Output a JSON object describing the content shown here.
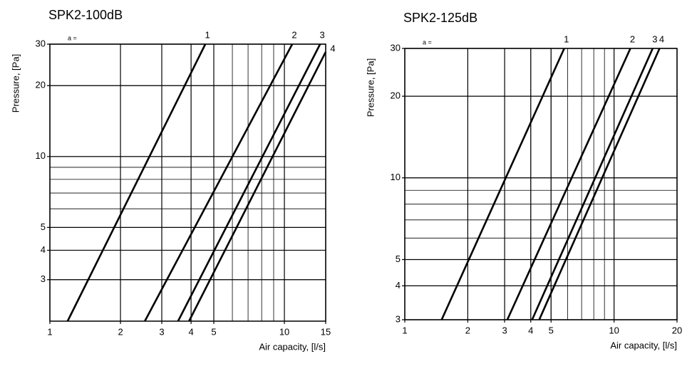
{
  "chart_data": [
    {
      "type": "line",
      "title": "SPK2-100dB",
      "x_label": "Air capacity, [l/s]",
      "y_label": "Pressure, [Pa]",
      "annotation": "a =",
      "log_x": true,
      "log_y": true,
      "grid": true,
      "minor_grid": true,
      "color": "#000000",
      "xlim": [
        1,
        15
      ],
      "xticks": [
        1,
        2,
        3,
        4,
        5,
        10,
        15
      ],
      "ylim": [
        2,
        30
      ],
      "yticks": [
        3,
        4,
        5,
        10,
        20,
        30
      ],
      "series": [
        {
          "name": "1",
          "x": [
            1.19,
            4.6
          ],
          "values": [
            2,
            30
          ]
        },
        {
          "name": "2",
          "x": [
            2.54,
            10.8
          ],
          "values": [
            2,
            30
          ]
        },
        {
          "name": "3",
          "x": [
            3.52,
            14.2
          ],
          "values": [
            2,
            30
          ]
        },
        {
          "name": "4",
          "x": [
            3.92,
            15
          ],
          "values": [
            2,
            27.8
          ]
        }
      ]
    },
    {
      "type": "line",
      "title": "SPK2-125dB",
      "x_label": "Air capacity, [l/s]",
      "y_label": "Pressure, [Pa]",
      "annotation": "a =",
      "log_x": true,
      "log_y": true,
      "grid": true,
      "minor_grid": true,
      "color": "#000000",
      "xlim": [
        1,
        20
      ],
      "xticks": [
        1,
        2,
        3,
        4,
        5,
        10,
        20
      ],
      "ylim": [
        3,
        30
      ],
      "yticks": [
        3,
        4,
        5,
        10,
        20,
        30
      ],
      "series": [
        {
          "name": "1",
          "x": [
            1.5,
            5.78
          ],
          "values": [
            3,
            30
          ]
        },
        {
          "name": "2",
          "x": [
            3.09,
            11.97
          ],
          "values": [
            3,
            30
          ]
        },
        {
          "name": "3",
          "x": [
            4.06,
            15.3
          ],
          "values": [
            3,
            30
          ]
        },
        {
          "name": "4",
          "x": [
            4.39,
            16.5
          ],
          "values": [
            3,
            30
          ]
        }
      ]
    }
  ]
}
